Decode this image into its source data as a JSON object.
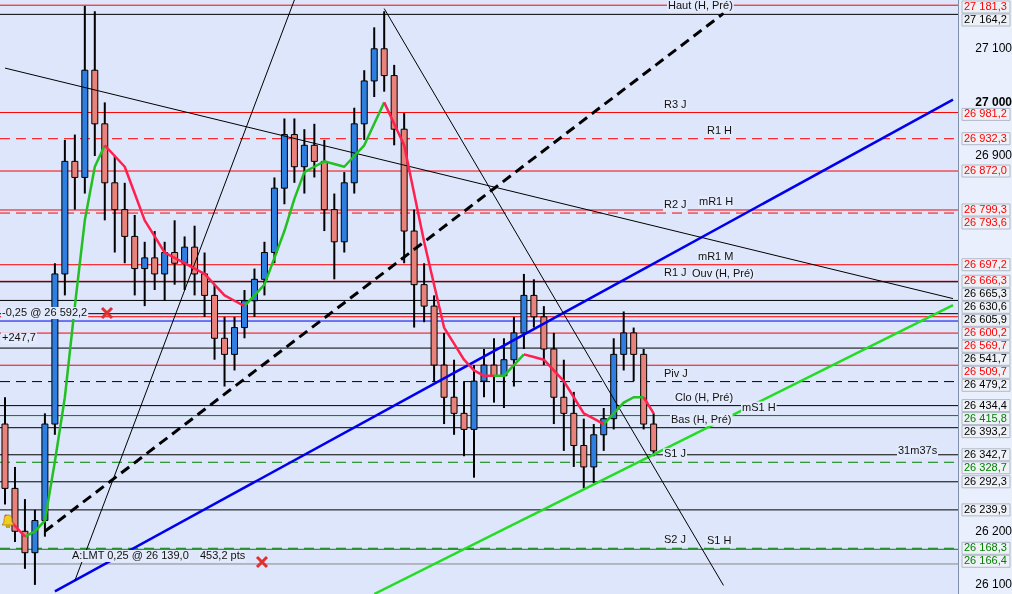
{
  "chart_data": {
    "type": "candlestick",
    "tick_labels": "y",
    "ylim": [
      26083,
      27191
    ],
    "yticks": [
      {
        "value": 26100,
        "label": "26 100"
      },
      {
        "value": 26200,
        "label": "26 200"
      },
      {
        "value": 26900,
        "label": "26 900"
      },
      {
        "value": 27000,
        "label": "27 000"
      },
      {
        "value": 27100,
        "label": "27 100"
      }
    ],
    "categories": [
      null,
      null,
      null,
      null,
      null,
      null,
      null,
      null,
      null,
      null,
      null,
      null,
      null,
      null,
      null,
      null,
      null,
      null,
      null,
      null,
      null,
      null,
      null,
      null,
      null,
      null,
      null,
      null,
      null,
      null,
      null,
      null,
      null,
      null,
      null,
      null,
      null,
      null,
      null,
      null,
      null,
      null,
      null,
      null,
      null,
      null,
      null,
      null,
      null,
      null,
      null,
      null,
      null,
      null,
      null,
      null,
      null,
      null,
      null,
      null,
      null,
      null,
      null,
      null,
      null,
      null,
      null,
      null,
      null,
      null,
      null,
      null,
      null,
      null,
      null,
      null,
      null,
      null,
      null,
      null,
      null,
      null,
      null,
      null,
      null,
      null,
      null,
      null,
      null,
      null,
      null,
      null,
      null,
      null,
      null,
      null
    ],
    "ohlc": [
      [
        26400,
        26450,
        26250,
        26280
      ],
      [
        26280,
        26320,
        26180,
        26200
      ],
      [
        26200,
        26260,
        26130,
        26160
      ],
      [
        26160,
        26240,
        26100,
        26220
      ],
      [
        26220,
        26420,
        26190,
        26400
      ],
      [
        26400,
        26700,
        26380,
        26680
      ],
      [
        26680,
        26930,
        26640,
        26890
      ],
      [
        26890,
        26940,
        26800,
        26860
      ],
      [
        26860,
        27180,
        26830,
        27060
      ],
      [
        27060,
        27170,
        26900,
        26960
      ],
      [
        26960,
        27000,
        26780,
        26850
      ],
      [
        26850,
        26900,
        26720,
        26800
      ],
      [
        26800,
        26850,
        26700,
        26750
      ],
      [
        26750,
        26790,
        26640,
        26690
      ],
      [
        26690,
        26740,
        26620,
        26710
      ],
      [
        26710,
        26760,
        26650,
        26680
      ],
      [
        26680,
        26740,
        26630,
        26720
      ],
      [
        26720,
        26780,
        26660,
        26700
      ],
      [
        26700,
        26750,
        26650,
        26730
      ],
      [
        26730,
        26770,
        26640,
        26680
      ],
      [
        26680,
        26720,
        26600,
        26640
      ],
      [
        26640,
        26660,
        26520,
        26560
      ],
      [
        26560,
        26600,
        26470,
        26530
      ],
      [
        26530,
        26600,
        26500,
        26580
      ],
      [
        26580,
        26650,
        26560,
        26630
      ],
      [
        26630,
        26690,
        26600,
        26670
      ],
      [
        26670,
        26740,
        26640,
        26720
      ],
      [
        26720,
        26860,
        26700,
        26840
      ],
      [
        26840,
        26970,
        26810,
        26940
      ],
      [
        26940,
        26970,
        26850,
        26880
      ],
      [
        26880,
        26950,
        26830,
        26920
      ],
      [
        26920,
        26960,
        26860,
        26890
      ],
      [
        26890,
        26930,
        26760,
        26800
      ],
      [
        26800,
        26830,
        26670,
        26740
      ],
      [
        26740,
        26870,
        26720,
        26850
      ],
      [
        26850,
        26990,
        26830,
        26960
      ],
      [
        26960,
        27060,
        26930,
        27040
      ],
      [
        27040,
        27140,
        27010,
        27100
      ],
      [
        27100,
        27170,
        27020,
        27050
      ],
      [
        27050,
        27070,
        26920,
        26950
      ],
      [
        26950,
        26980,
        26700,
        26760
      ],
      [
        26760,
        26800,
        26580,
        26660
      ],
      [
        26660,
        26700,
        26590,
        26620
      ],
      [
        26620,
        26640,
        26480,
        26510
      ],
      [
        26510,
        26570,
        26400,
        26450
      ],
      [
        26450,
        26520,
        26380,
        26420
      ],
      [
        26420,
        26480,
        26340,
        26390
      ],
      [
        26390,
        26510,
        26300,
        26480
      ],
      [
        26480,
        26540,
        26450,
        26510
      ],
      [
        26510,
        26560,
        26440,
        26490
      ],
      [
        26490,
        26560,
        26430,
        26520
      ],
      [
        26520,
        26600,
        26470,
        26570
      ],
      [
        26570,
        26680,
        26540,
        26640
      ],
      [
        26640,
        26670,
        26580,
        26600
      ],
      [
        26600,
        26620,
        26510,
        26540
      ],
      [
        26540,
        26570,
        26400,
        26450
      ],
      [
        26450,
        26520,
        26350,
        26420
      ],
      [
        26420,
        26460,
        26320,
        26360
      ],
      [
        26360,
        26410,
        26280,
        26320
      ],
      [
        26320,
        26400,
        26290,
        26380
      ],
      [
        26380,
        26430,
        26350,
        26410
      ],
      [
        26410,
        26560,
        26390,
        26530
      ],
      [
        26530,
        26610,
        26500,
        26570
      ],
      [
        26570,
        26580,
        26480,
        26530
      ],
      [
        26530,
        26540,
        26390,
        26400
      ],
      [
        26400,
        26420,
        26340,
        26350
      ],
      null,
      null,
      null,
      null,
      null,
      null,
      null,
      null,
      null,
      null,
      null,
      null,
      null,
      null,
      null,
      null,
      null,
      null,
      null,
      null,
      null,
      null,
      null,
      null,
      null,
      null,
      null,
      null,
      null,
      null
    ],
    "colors": [
      "#e8827a",
      "#e8827a",
      "#e8827a",
      "#2f7fe0",
      "#2f7fe0",
      "#2f7fe0",
      "#2f7fe0",
      "#e8827a",
      "#2f7fe0",
      "#e8827a",
      "#e8827a",
      "#e8827a",
      "#e8827a",
      "#e8827a",
      "#2f7fe0",
      "#e8827a",
      "#2f7fe0",
      "#e8827a",
      "#2f7fe0",
      "#e8827a",
      "#e8827a",
      "#e8827a",
      "#e8827a",
      "#2f7fe0",
      "#2f7fe0",
      "#2f7fe0",
      "#2f7fe0",
      "#2f7fe0",
      "#2f7fe0",
      "#e8827a",
      "#2f7fe0",
      "#e8827a",
      "#e8827a",
      "#e8827a",
      "#2f7fe0",
      "#2f7fe0",
      "#2f7fe0",
      "#2f7fe0",
      "#e8827a",
      "#e8827a",
      "#e8827a",
      "#e8827a",
      "#e8827a",
      "#e8827a",
      "#e8827a",
      "#e8827a",
      "#e8827a",
      "#2f7fe0",
      "#2f7fe0",
      "#e8827a",
      "#2f7fe0",
      "#2f7fe0",
      "#2f7fe0",
      "#e8827a",
      "#e8827a",
      "#e8827a",
      "#e8827a",
      "#e8827a",
      "#e8827a",
      "#2f7fe0",
      "#2f7fe0",
      "#2f7fe0",
      "#2f7fe0",
      "#e8827a",
      "#e8827a",
      "#e8827a",
      null,
      null,
      null,
      null,
      null,
      null,
      null,
      null,
      null,
      null,
      null,
      null,
      null,
      null,
      null,
      null,
      null,
      null,
      null,
      null,
      null,
      null,
      null,
      null,
      null,
      null,
      null,
      null,
      null,
      null
    ],
    "series": [
      {
        "type": "line",
        "color": "#ff2050",
        "values": [
          26230,
          26210,
          26190,
          null,
          null,
          null,
          null,
          null,
          null,
          null,
          26920,
          26900,
          26880,
          26830,
          26780,
          26750,
          26720,
          26710,
          26700,
          26690,
          26680,
          26660,
          26640,
          26630,
          26620,
          null,
          null,
          null,
          null,
          null,
          null,
          null,
          null,
          null,
          null,
          null,
          null,
          null,
          27000,
          26960,
          26920,
          26830,
          26740,
          26660,
          26580,
          26550,
          26520,
          26500,
          26490,
          26490,
          null,
          null,
          26530,
          26525,
          26520,
          26500,
          26480,
          26450,
          26420,
          26410,
          26400,
          null,
          null,
          null,
          26450,
          26420,
          null,
          null,
          null,
          null,
          null,
          null,
          null,
          null,
          null,
          null,
          null,
          null,
          null,
          null,
          null,
          null,
          null,
          null,
          null,
          null,
          null,
          null,
          null,
          null,
          null,
          null,
          null,
          null,
          null,
          null
        ]
      },
      {
        "type": "line",
        "color": "#22c022",
        "values": [
          null,
          null,
          26190,
          26200,
          26220,
          26330,
          26450,
          26620,
          26780,
          26880,
          26920,
          null,
          null,
          null,
          null,
          null,
          null,
          null,
          null,
          null,
          null,
          null,
          null,
          null,
          26620,
          26640,
          26660,
          26710,
          26760,
          26820,
          26870,
          26880,
          26890,
          26885,
          26880,
          26900,
          26920,
          26960,
          27000,
          null,
          null,
          null,
          null,
          null,
          null,
          null,
          null,
          null,
          null,
          26490,
          26490,
          26510,
          26530,
          null,
          null,
          null,
          null,
          null,
          null,
          null,
          26400,
          26420,
          26440,
          26450,
          26450,
          null,
          null,
          null,
          null,
          null,
          null,
          null,
          null,
          null,
          null,
          null,
          null,
          null,
          null,
          null,
          null,
          null,
          null,
          null,
          null,
          null,
          null,
          null,
          null,
          null,
          null,
          null,
          null,
          null,
          null,
          null
        ]
      },
      {
        "type": "line",
        "color": "#000000",
        "values": [
          27064,
          null,
          null,
          null,
          null,
          null,
          null,
          null,
          null,
          null,
          null,
          null,
          null,
          null,
          null,
          null,
          null,
          null,
          null,
          null,
          null,
          null,
          null,
          null,
          null,
          null,
          null,
          null,
          null,
          null,
          null,
          null,
          null,
          null,
          null,
          null,
          null,
          null,
          null,
          null,
          null,
          null,
          null,
          null,
          null,
          null,
          null,
          null,
          null,
          null,
          null,
          null,
          null,
          null,
          null,
          null,
          null,
          null,
          null,
          null,
          null,
          null,
          null,
          null,
          null,
          null,
          null,
          null,
          null,
          null,
          null,
          null,
          null,
          null,
          null,
          null,
          null,
          null,
          null,
          null,
          null,
          null,
          null,
          null,
          null,
          null,
          null,
          null,
          null,
          null,
          null,
          null,
          null,
          null,
          null,
          26634
        ]
      },
      {
        "type": "line",
        "color": "#000000",
        "values": [
          null,
          null,
          null,
          null,
          null,
          null,
          null,
          26108,
          null,
          null,
          null,
          null,
          null,
          null,
          null,
          null,
          null,
          null,
          null,
          null,
          null,
          null,
          null,
          null,
          null,
          null,
          null,
          null,
          null,
          27191,
          null,
          null,
          null,
          null,
          null,
          null,
          null,
          null,
          null,
          null,
          null,
          null,
          null,
          null,
          null,
          null,
          null,
          null,
          null,
          null,
          null,
          null,
          null,
          null,
          null,
          null,
          null,
          null,
          null,
          null,
          null,
          null,
          null,
          null,
          null,
          null,
          null,
          null,
          null,
          null,
          null,
          null,
          null,
          null,
          null,
          null,
          null,
          null,
          null,
          null,
          null,
          null,
          null,
          null,
          null,
          null,
          null,
          null,
          null,
          null,
          null,
          null,
          null,
          null,
          null,
          null
        ]
      },
      {
        "type": "line",
        "color": "#000000",
        "values": [
          null,
          null,
          null,
          null,
          null,
          null,
          null,
          null,
          null,
          null,
          null,
          null,
          null,
          null,
          null,
          null,
          null,
          null,
          null,
          null,
          null,
          null,
          null,
          null,
          null,
          null,
          null,
          null,
          null,
          null,
          null,
          null,
          null,
          null,
          null,
          null,
          null,
          null,
          27175,
          null,
          null,
          null,
          null,
          null,
          null,
          null,
          null,
          null,
          null,
          null,
          null,
          null,
          null,
          null,
          null,
          null,
          null,
          null,
          null,
          null,
          null,
          null,
          null,
          null,
          null,
          null,
          null,
          null,
          null,
          null,
          null,
          null,
          26099,
          null,
          null,
          null,
          null,
          null,
          null,
          null,
          null,
          null,
          null,
          null,
          null,
          null,
          null,
          null,
          null,
          null,
          null,
          null,
          null,
          null,
          null,
          null
        ]
      },
      {
        "type": "line",
        "color": "#000000",
        "line_style": "dashed",
        "values": [
          null,
          null,
          null,
          null,
          26200,
          null,
          null,
          null,
          null,
          null,
          null,
          null,
          null,
          null,
          null,
          null,
          null,
          null,
          null,
          null,
          null,
          null,
          null,
          null,
          null,
          null,
          null,
          null,
          null,
          null,
          null,
          null,
          null,
          null,
          null,
          null,
          null,
          null,
          null,
          null,
          null,
          null,
          null,
          null,
          null,
          null,
          null,
          null,
          null,
          null,
          null,
          null,
          null,
          null,
          null,
          null,
          null,
          null,
          null,
          null,
          null,
          null,
          null,
          null,
          null,
          null,
          null,
          null,
          null,
          null,
          null,
          null,
          27166,
          null,
          null,
          null,
          null,
          null,
          null,
          null,
          null,
          null,
          null,
          null,
          null,
          null,
          null,
          null,
          null,
          null,
          null,
          null,
          null,
          null,
          null,
          null
        ]
      },
      {
        "type": "line",
        "color": "#0000ee",
        "values": [
          null,
          null,
          null,
          null,
          null,
          26088,
          null,
          null,
          null,
          null,
          null,
          null,
          null,
          null,
          null,
          null,
          null,
          null,
          null,
          null,
          null,
          null,
          null,
          null,
          null,
          null,
          null,
          null,
          null,
          null,
          null,
          null,
          null,
          null,
          null,
          null,
          null,
          null,
          null,
          null,
          null,
          null,
          null,
          null,
          null,
          null,
          null,
          null,
          null,
          null,
          null,
          null,
          null,
          null,
          null,
          null,
          null,
          null,
          null,
          null,
          null,
          null,
          null,
          null,
          null,
          null,
          null,
          null,
          null,
          null,
          null,
          null,
          null,
          null,
          null,
          null,
          null,
          null,
          null,
          null,
          null,
          null,
          null,
          null,
          null,
          null,
          null,
          null,
          null,
          null,
          null,
          null,
          null,
          null,
          null,
          27005
        ]
      },
      {
        "type": "line",
        "color": "#22dd22",
        "values": [
          null,
          null,
          null,
          null,
          null,
          null,
          null,
          null,
          null,
          null,
          null,
          null,
          null,
          null,
          null,
          null,
          null,
          null,
          null,
          null,
          null,
          null,
          null,
          null,
          null,
          null,
          null,
          null,
          null,
          null,
          null,
          null,
          null,
          null,
          null,
          null,
          null,
          26083,
          null,
          null,
          null,
          null,
          null,
          null,
          null,
          null,
          null,
          null,
          null,
          null,
          null,
          null,
          null,
          null,
          null,
          null,
          null,
          null,
          null,
          null,
          null,
          null,
          null,
          null,
          null,
          null,
          null,
          null,
          null,
          null,
          null,
          null,
          null,
          null,
          null,
          null,
          null,
          null,
          null,
          null,
          null,
          null,
          null,
          null,
          null,
          null,
          null,
          null,
          null,
          null,
          null,
          null,
          null,
          null,
          null,
          26622
        ]
      }
    ],
    "ref_lines": [
      {
        "axis": "y",
        "value": 27181.3,
        "label": "27 181,3",
        "color": "#ff0000"
      },
      {
        "axis": "y",
        "value": 27164.2,
        "label": "27 164,2",
        "color": "#000000"
      },
      {
        "axis": "y",
        "value": 26981.2,
        "label": "26 981,2",
        "color": "#ff0000"
      },
      {
        "axis": "y",
        "value": 26932.3,
        "label": "26 932,3",
        "color": "#ff0000",
        "line_style": "dashed"
      },
      {
        "axis": "y",
        "value": 26872.0,
        "label": "26 872,0",
        "color": "#ff0000"
      },
      {
        "axis": "y",
        "value": 26799.3,
        "label": "26 799,3",
        "color": "#ff0000"
      },
      {
        "axis": "y",
        "value": 26793.6,
        "label": "26 793,6",
        "color": "#ff0000",
        "line_style": "dashed"
      },
      {
        "axis": "y",
        "value": 26697.2,
        "label": "26 697,2",
        "color": "#ff0000"
      },
      {
        "axis": "y",
        "value": 26666.3,
        "label": "26 666,3",
        "color": "#ff0000"
      },
      {
        "axis": "y",
        "value": 26665.3,
        "label": "26 665,3",
        "color": "#000000"
      },
      {
        "axis": "y",
        "value": 26630.6,
        "label": "26 630,6",
        "color": "#000000"
      },
      {
        "axis": "y",
        "value": 26605.9,
        "label": "26 605,9",
        "color": "#000000"
      },
      {
        "axis": "y",
        "value": 26600.2,
        "label": "26 600,2",
        "color": "#ff0000"
      },
      {
        "axis": "y",
        "value": 26592.2,
        "color": "#0000ee"
      },
      {
        "axis": "y",
        "value": 26569.7,
        "label": "26 569,7",
        "color": "#ff0000"
      },
      {
        "axis": "y",
        "value": 26541.7,
        "label": "26 541,7",
        "color": "#000000"
      },
      {
        "axis": "y",
        "value": 26509.7,
        "label": "26 509,7",
        "color": "#ff0000"
      },
      {
        "axis": "y",
        "value": 26479.2,
        "label": "26 479,2",
        "color": "#000000",
        "line_style": "dashed"
      },
      {
        "axis": "y",
        "value": 26434.4,
        "label": "26 434,4",
        "color": "#000000"
      },
      {
        "axis": "y",
        "value": 26415.8,
        "label": "26 415,8",
        "color": "#008000"
      },
      {
        "axis": "y",
        "value": 26393.2,
        "label": "26 393,2",
        "color": "#000000"
      },
      {
        "axis": "y",
        "value": 26342.7,
        "label": "26 342,7",
        "color": "#000000"
      },
      {
        "axis": "y",
        "value": 26328.7,
        "label": "26 328,7",
        "color": "#008000",
        "line_style": "dashed"
      },
      {
        "axis": "y",
        "value": 26292.3,
        "label": "26 292,3",
        "color": "#000000"
      },
      {
        "axis": "y",
        "value": 26239.9,
        "label": "26 239,9",
        "color": "#000000"
      },
      {
        "axis": "y",
        "value": 26168.3,
        "label": "26 168,3",
        "color": "#008000",
        "line_style": "dashed"
      },
      {
        "axis": "y",
        "value": 26166.4,
        "label": "26 166,4",
        "color": "#008000"
      },
      {
        "axis": "y",
        "value": 26139.0,
        "color": "#888888"
      }
    ],
    "annotations": [
      {
        "text": "Haut (H, Pré)",
        "y": 27164.2
      },
      {
        "text": "R3 J",
        "y": 26981.2
      },
      {
        "text": "R1 H",
        "y": 26932.3
      },
      {
        "text": "R2 J",
        "y": 26793.6
      },
      {
        "text": "mR1 H",
        "y": 26799.3
      },
      {
        "text": "mR1 M",
        "y": 26697.2
      },
      {
        "text": "R1 J",
        "y": 26666.3
      },
      {
        "text": "Ouv (H, Pré)",
        "y": 26665.3
      },
      {
        "text": "Piv J",
        "y": 26479.2
      },
      {
        "text": "Clo (H, Pré)",
        "y": 26434.4
      },
      {
        "text": "mS1 H",
        "y": 26415.8
      },
      {
        "text": "Bas (H, Pré)",
        "y": 26393.2
      },
      {
        "text": "S1 J",
        "y": 26328.7
      },
      {
        "text": "S2 J",
        "y": 26168.3
      },
      {
        "text": "S1 H",
        "y": 26166.4
      },
      {
        "text": "-0,25 @ 26 592,2",
        "y": 26592.2
      },
      {
        "text": "+247,7",
        "y": 26545
      },
      {
        "text": "A:LMT 0,25 @ 26 139,0",
        "y": 26139.0
      },
      {
        "text": "453,2 pts",
        "y": 26139.0
      },
      "31m37s"
    ]
  }
}
